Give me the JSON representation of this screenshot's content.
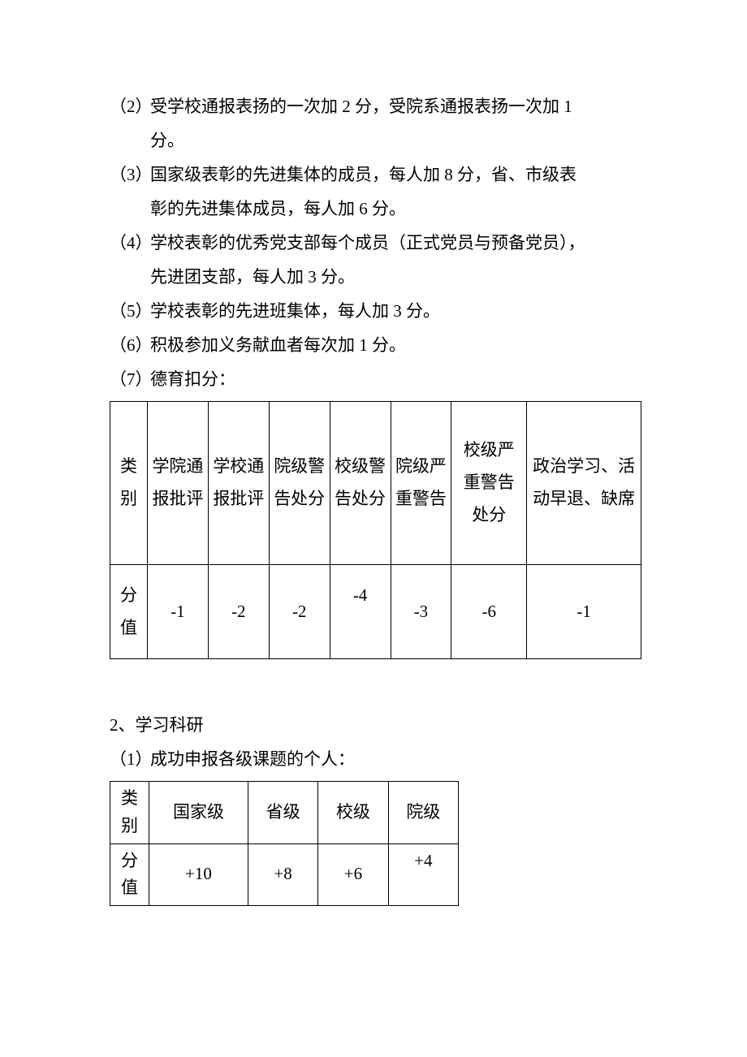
{
  "items": {
    "item2": {
      "label": "（2）",
      "text_line1": "受学校通报表扬的一次加 2 分，受院系通报表扬一次加 1",
      "text_line2": "分。"
    },
    "item3": {
      "label": "（3）",
      "text_line1": "国家级表彰的先进集体的成员，每人加 8 分，省、市级表",
      "text_line2": "彰的先进集体成员，每人加 6 分。"
    },
    "item4": {
      "label": "（4）",
      "text_line1": "学校表彰的优秀党支部每个成员（正式党员与预备党员），",
      "text_line2": "先进团支部，每人加 3 分。"
    },
    "item5": {
      "label": "（5）",
      "text": "学校表彰的先进班集体，每人加 3 分。"
    },
    "item6": {
      "label": "（6）",
      "text": "积极参加义务献血者每次加 1 分。"
    },
    "item7": {
      "label": "（7）",
      "text": "德育扣分："
    }
  },
  "table1": {
    "row_label_header": "类别",
    "row_label_values": "分值",
    "columns": [
      "学院通报批评",
      "学校通报批评",
      "院级警告处分",
      "校级警告处分",
      "院级严重警告",
      "校级严重警告处分",
      "政治学习、活动早退、缺席"
    ],
    "values": [
      "-1",
      "-2",
      "-2",
      "-4",
      "-3",
      "-6",
      "-1"
    ]
  },
  "section2": {
    "heading": "2、学习科研",
    "sub1": {
      "label": "（1）",
      "text": "成功申报各级课题的个人："
    }
  },
  "table2": {
    "row_label_header": "类别",
    "row_label_values": "分值",
    "columns": [
      "国家级",
      "省级",
      "校级",
      "院级"
    ],
    "values": [
      "+10",
      "+8",
      "+6",
      "+4"
    ]
  },
  "colors": {
    "text": "#000000",
    "background": "#ffffff",
    "border": "#000000"
  },
  "typography": {
    "font_family": "SimSun",
    "body_fontsize": 21,
    "line_height": 2.0
  }
}
